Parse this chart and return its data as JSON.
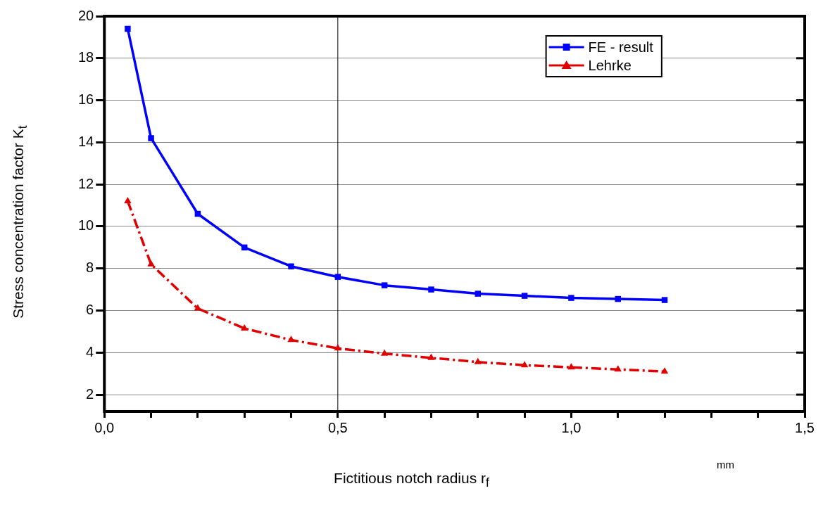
{
  "chart_data": {
    "type": "line",
    "xlabel": "Fictitious notch radius  r$_{f}$",
    "ylabel": "Stress concentration factor  K$_{t}$",
    "annotations": [
      "mm"
    ],
    "x": [
      0.05,
      0.1,
      0.2,
      0.3,
      0.4,
      0.5,
      0.6,
      0.7,
      0.8,
      0.9,
      1.0,
      1.1,
      1.2
    ],
    "series": [
      {
        "name": "FE - result",
        "color": "#0000ff",
        "marker": "square",
        "line_style": "solid",
        "values": [
          19.4,
          14.2,
          10.6,
          9.0,
          8.1,
          7.6,
          7.2,
          7.0,
          6.8,
          6.7,
          6.6,
          6.55,
          6.5
        ]
      },
      {
        "name": "Lehrke",
        "color": "#e00000",
        "marker": "triangle",
        "line_style": "dashed",
        "values": [
          11.2,
          8.2,
          6.1,
          5.15,
          4.6,
          4.2,
          3.95,
          3.75,
          3.55,
          3.4,
          3.3,
          3.2,
          3.1
        ]
      }
    ],
    "xlim": [
      0,
      1.5
    ],
    "xticks": [
      {
        "value": 0,
        "label": "0,0"
      },
      {
        "value": 0.1,
        "label": null
      },
      {
        "value": 0.2,
        "label": null
      },
      {
        "value": 0.3,
        "label": null
      },
      {
        "value": 0.4,
        "label": null
      },
      {
        "value": 0.5,
        "label": "0,5"
      },
      {
        "value": 0.6,
        "label": null
      },
      {
        "value": 0.7,
        "label": null
      },
      {
        "value": 0.8,
        "label": null
      },
      {
        "value": 0.9,
        "label": null
      },
      {
        "value": 1.0,
        "label": "1,0"
      },
      {
        "value": 1.1,
        "label": null
      },
      {
        "value": 1.2,
        "label": null
      },
      {
        "value": 1.3,
        "label": null
      },
      {
        "value": 1.4,
        "label": null
      },
      {
        "value": 1.5,
        "label": "1,5"
      }
    ],
    "ylim": [
      1.2,
      20
    ],
    "yticks": [
      2,
      4,
      6,
      8,
      10,
      12,
      14,
      16,
      18,
      20
    ],
    "grid": "y",
    "ref_lines": [
      {
        "axis": "x",
        "value": 0.5,
        "color": "#000000"
      }
    ],
    "legend": "top"
  }
}
